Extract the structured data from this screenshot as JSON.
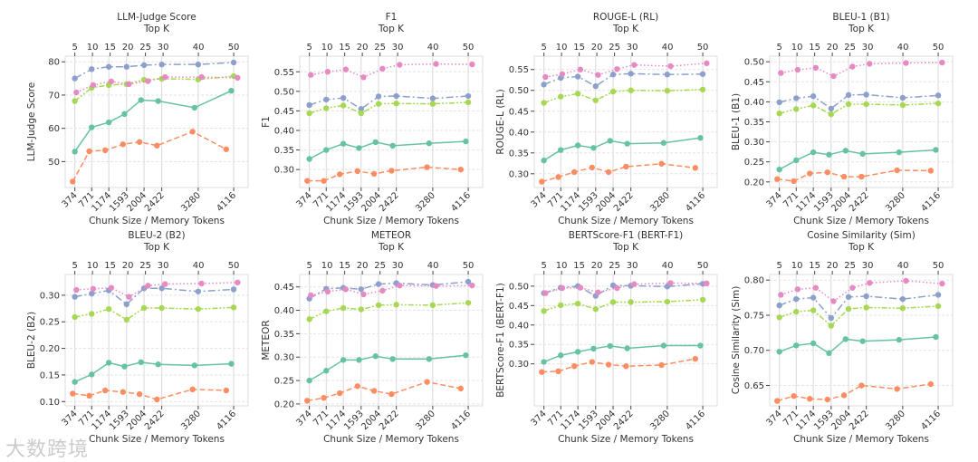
{
  "watermark": "大数跨境",
  "chart_data": {
    "type": "line",
    "layout": "2x4 grid of subplots",
    "xlabel": "Chunk Size / Memory Tokens",
    "top_xlabel": "Top K",
    "chunk_ticks": [
      374,
      771,
      1174,
      1593,
      2004,
      2422,
      3280,
      4116
    ],
    "top_k_ticks": [
      5,
      10,
      15,
      20,
      25,
      30,
      40,
      50
    ],
    "xlim": [
      147,
      4456
    ],
    "series": [
      {
        "id": "s1",
        "color": "#66c2a5",
        "style": "solid",
        "x": [
          374,
          771,
          1174,
          1543,
          1933,
          2337,
          3194,
          4060
        ]
      },
      {
        "id": "s2",
        "color": "#fc8d62",
        "style": "dashed",
        "x": [
          324,
          714,
          1090,
          1508,
          1898,
          2309,
          3146,
          3940
        ]
      },
      {
        "id": "s3",
        "color": "#8da0cb",
        "style": "dashdot",
        "x": [
          374,
          771,
          1174,
          1593,
          2004,
          2422,
          3280,
          4116
        ]
      },
      {
        "id": "s4",
        "color": "#a6d854",
        "style": "dashdotdot",
        "x": [
          374,
          771,
          1174,
          1593,
          2004,
          2422,
          3280,
          4116
        ]
      },
      {
        "id": "s5",
        "color": "#e78ac3",
        "style": "dotted",
        "x": [
          410,
          806,
          1232,
          1650,
          2096,
          2500,
          3358,
          4208
        ]
      }
    ],
    "panels": [
      {
        "title": "LLM-Judge Score",
        "ylabel": "LLM-Judge Score",
        "ylim": [
          42.2,
          81.7
        ],
        "yticks": [
          50,
          60,
          70,
          80
        ],
        "yfmt": 0,
        "values": {
          "s1": [
            53,
            60.3,
            61.8,
            64.3,
            68.5,
            68.2,
            66.2,
            71.3
          ],
          "s2": [
            44,
            53.1,
            53.4,
            55.2,
            55.9,
            54.8,
            59,
            53.7
          ],
          "s3": [
            75,
            77.8,
            78.5,
            78.5,
            79,
            79.2,
            79.2,
            79.8
          ],
          "s4": [
            68.2,
            72.2,
            73,
            73.3,
            74.6,
            74.9,
            74.7,
            75.7
          ],
          "s5": [
            70.8,
            73,
            74.1,
            73.3,
            74.2,
            75.4,
            75.4,
            75.2
          ]
        }
      },
      {
        "title": "F1",
        "ylabel": "F1",
        "ylim": [
          0.254,
          0.59
        ],
        "yticks": [
          0.3,
          0.35,
          0.4,
          0.45,
          0.5,
          0.55
        ],
        "yfmt": 2,
        "values": {
          "s1": [
            0.327,
            0.35,
            0.366,
            0.355,
            0.37,
            0.361,
            0.367,
            0.372
          ],
          "s2": [
            0.271,
            0.271,
            0.288,
            0.296,
            0.289,
            0.297,
            0.306,
            0.3
          ],
          "s3": [
            0.465,
            0.479,
            0.483,
            0.455,
            0.487,
            0.488,
            0.482,
            0.488
          ],
          "s4": [
            0.444,
            0.457,
            0.464,
            0.444,
            0.468,
            0.469,
            0.468,
            0.472
          ],
          "s5": [
            0.542,
            0.55,
            0.556,
            0.536,
            0.558,
            0.568,
            0.57,
            0.569
          ]
        }
      },
      {
        "title": "ROUGE-L (RL)",
        "ylabel": "ROUGE-L (RL)",
        "ylim": [
          0.267,
          0.582
        ],
        "yticks": [
          0.3,
          0.35,
          0.4,
          0.45,
          0.5,
          0.55
        ],
        "yfmt": 2,
        "values": {
          "s1": [
            0.332,
            0.357,
            0.368,
            0.362,
            0.379,
            0.372,
            0.374,
            0.386
          ],
          "s2": [
            0.281,
            0.292,
            0.304,
            0.315,
            0.304,
            0.317,
            0.324,
            0.314
          ],
          "s3": [
            0.514,
            0.53,
            0.533,
            0.51,
            0.538,
            0.54,
            0.538,
            0.539
          ],
          "s4": [
            0.47,
            0.485,
            0.492,
            0.476,
            0.497,
            0.5,
            0.499,
            0.502
          ],
          "s5": [
            0.532,
            0.539,
            0.55,
            0.537,
            0.551,
            0.561,
            0.558,
            0.565
          ]
        }
      },
      {
        "title": "BLEU-1 (B1)",
        "ylabel": "BLEU-1 (B1)",
        "ylim": [
          0.186,
          0.514
        ],
        "yticks": [
          0.2,
          0.25,
          0.3,
          0.35,
          0.4,
          0.45,
          0.5
        ],
        "yfmt": 2,
        "values": {
          "s1": [
            0.231,
            0.254,
            0.274,
            0.268,
            0.278,
            0.27,
            0.274,
            0.28
          ],
          "s2": [
            0.207,
            0.202,
            0.221,
            0.224,
            0.213,
            0.213,
            0.229,
            0.228
          ],
          "s3": [
            0.399,
            0.409,
            0.414,
            0.383,
            0.417,
            0.418,
            0.41,
            0.416
          ],
          "s4": [
            0.371,
            0.382,
            0.391,
            0.369,
            0.394,
            0.394,
            0.392,
            0.396
          ],
          "s5": [
            0.472,
            0.48,
            0.485,
            0.464,
            0.488,
            0.495,
            0.497,
            0.498
          ]
        }
      },
      {
        "title": "BLEU-2 (B2)",
        "ylabel": "BLEU-2 (B2)",
        "ylim": [
          0.092,
          0.339
        ],
        "yticks": [
          0.1,
          0.15,
          0.2,
          0.25,
          0.3
        ],
        "yfmt": 2,
        "values": {
          "s1": [
            0.137,
            0.151,
            0.173,
            0.166,
            0.174,
            0.17,
            0.168,
            0.171
          ],
          "s2": [
            0.115,
            0.111,
            0.121,
            0.118,
            0.114,
            0.104,
            0.123,
            0.121
          ],
          "s3": [
            0.297,
            0.303,
            0.309,
            0.283,
            0.313,
            0.313,
            0.307,
            0.311
          ],
          "s4": [
            0.259,
            0.265,
            0.274,
            0.254,
            0.276,
            0.276,
            0.274,
            0.277
          ],
          "s5": [
            0.31,
            0.312,
            0.314,
            0.297,
            0.318,
            0.321,
            0.322,
            0.324
          ]
        }
      },
      {
        "title": "METEOR",
        "ylabel": "METEOR",
        "ylim": [
          0.196,
          0.4765
        ],
        "yticks": [
          0.2,
          0.25,
          0.3,
          0.35,
          0.4,
          0.45
        ],
        "yfmt": 2,
        "values": {
          "s1": [
            0.25,
            0.271,
            0.294,
            0.294,
            0.302,
            0.296,
            0.296,
            0.304
          ],
          "s2": [
            0.207,
            0.213,
            0.223,
            0.238,
            0.228,
            0.221,
            0.247,
            0.233
          ],
          "s3": [
            0.425,
            0.446,
            0.448,
            0.445,
            0.456,
            0.458,
            0.454,
            0.461
          ],
          "s4": [
            0.381,
            0.398,
            0.405,
            0.402,
            0.411,
            0.412,
            0.411,
            0.416
          ],
          "s5": [
            0.432,
            0.44,
            0.445,
            0.434,
            0.442,
            0.453,
            0.452,
            0.453
          ]
        }
      },
      {
        "title": "BERTScore-F1 (BERT-F1)",
        "ylabel": "BERTScore-F1 (BERT-F1)",
        "ylim": [
          0.192,
          0.53
        ],
        "yticks": [
          0.3,
          0.35,
          0.4,
          0.45,
          0.5
        ],
        "yfmt": 2,
        "values": {
          "s1": [
            0.305,
            0.322,
            0.331,
            0.339,
            0.346,
            0.34,
            0.347,
            0.347
          ],
          "s2": [
            0.279,
            0.281,
            0.294,
            0.305,
            0.298,
            0.294,
            0.297,
            0.313
          ],
          "s3": [
            0.482,
            0.496,
            0.5,
            0.475,
            0.502,
            0.501,
            0.499,
            0.506
          ],
          "s4": [
            0.436,
            0.451,
            0.455,
            0.441,
            0.459,
            0.459,
            0.46,
            0.465
          ],
          "s5": [
            0.482,
            0.495,
            0.496,
            0.484,
            0.495,
            0.505,
            0.508,
            0.507
          ]
        }
      },
      {
        "title": "Cosine Similarity (Sim)",
        "ylabel": "Cosine Similarity (Sim)",
        "ylim": [
          0.621,
          0.808
        ],
        "yticks": [
          0.65,
          0.7,
          0.75,
          0.8
        ],
        "yfmt": 2,
        "values": {
          "s1": [
            0.698,
            0.707,
            0.71,
            0.696,
            0.716,
            0.713,
            0.715,
            0.719
          ],
          "s2": [
            0.628,
            0.635,
            0.631,
            0.63,
            0.636,
            0.65,
            0.645,
            0.652
          ],
          "s3": [
            0.764,
            0.773,
            0.775,
            0.746,
            0.776,
            0.777,
            0.773,
            0.779
          ],
          "s4": [
            0.747,
            0.755,
            0.757,
            0.735,
            0.759,
            0.761,
            0.76,
            0.763
          ],
          "s5": [
            0.779,
            0.787,
            0.789,
            0.77,
            0.789,
            0.796,
            0.799,
            0.795
          ]
        }
      }
    ]
  }
}
